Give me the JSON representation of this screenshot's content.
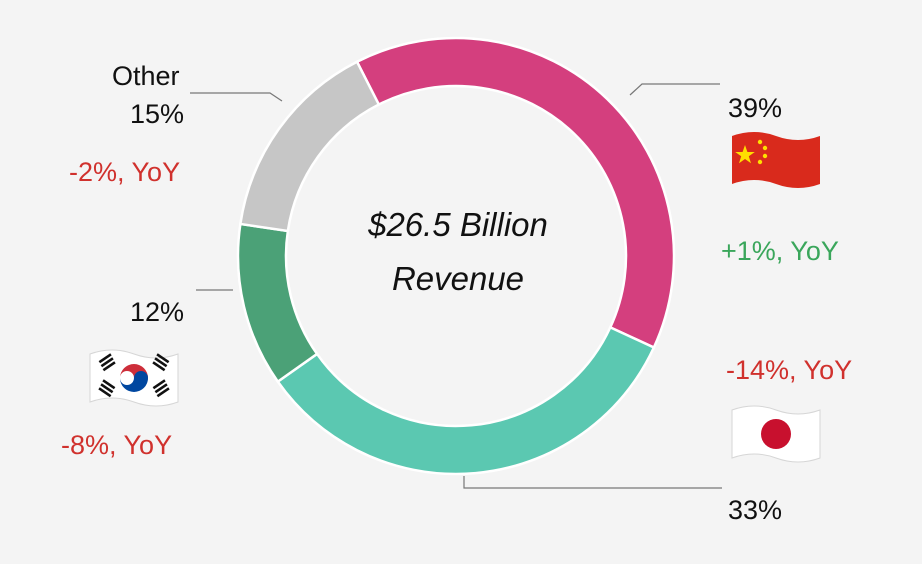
{
  "chart_data": {
    "type": "pie",
    "variant": "donut",
    "center_text": [
      "$26.5 Billion",
      "Revenue"
    ],
    "slices": [
      {
        "label": "China",
        "value": 39,
        "display": "39%",
        "yoy": "+1%, YoY",
        "yoy_color": "#3aa65b",
        "color": "#d43f7e",
        "icon": "china-flag-icon"
      },
      {
        "label": "Japan",
        "value": 33,
        "display": "33%",
        "yoy": "-14%, YoY",
        "yoy_color": "#d0312d",
        "color": "#5bc8b1",
        "icon": "japan-flag-icon"
      },
      {
        "label": "South Korea",
        "value": 12,
        "display": "12%",
        "yoy": "-8%, YoY",
        "yoy_color": "#d0312d",
        "color": "#4ba177",
        "icon": "south-korea-flag-icon"
      },
      {
        "label": "Other",
        "value": 15,
        "display": "15%",
        "yoy": "-2%, YoY",
        "yoy_color": "#d0312d",
        "color": "#c6c6c6",
        "icon": ""
      }
    ]
  }
}
